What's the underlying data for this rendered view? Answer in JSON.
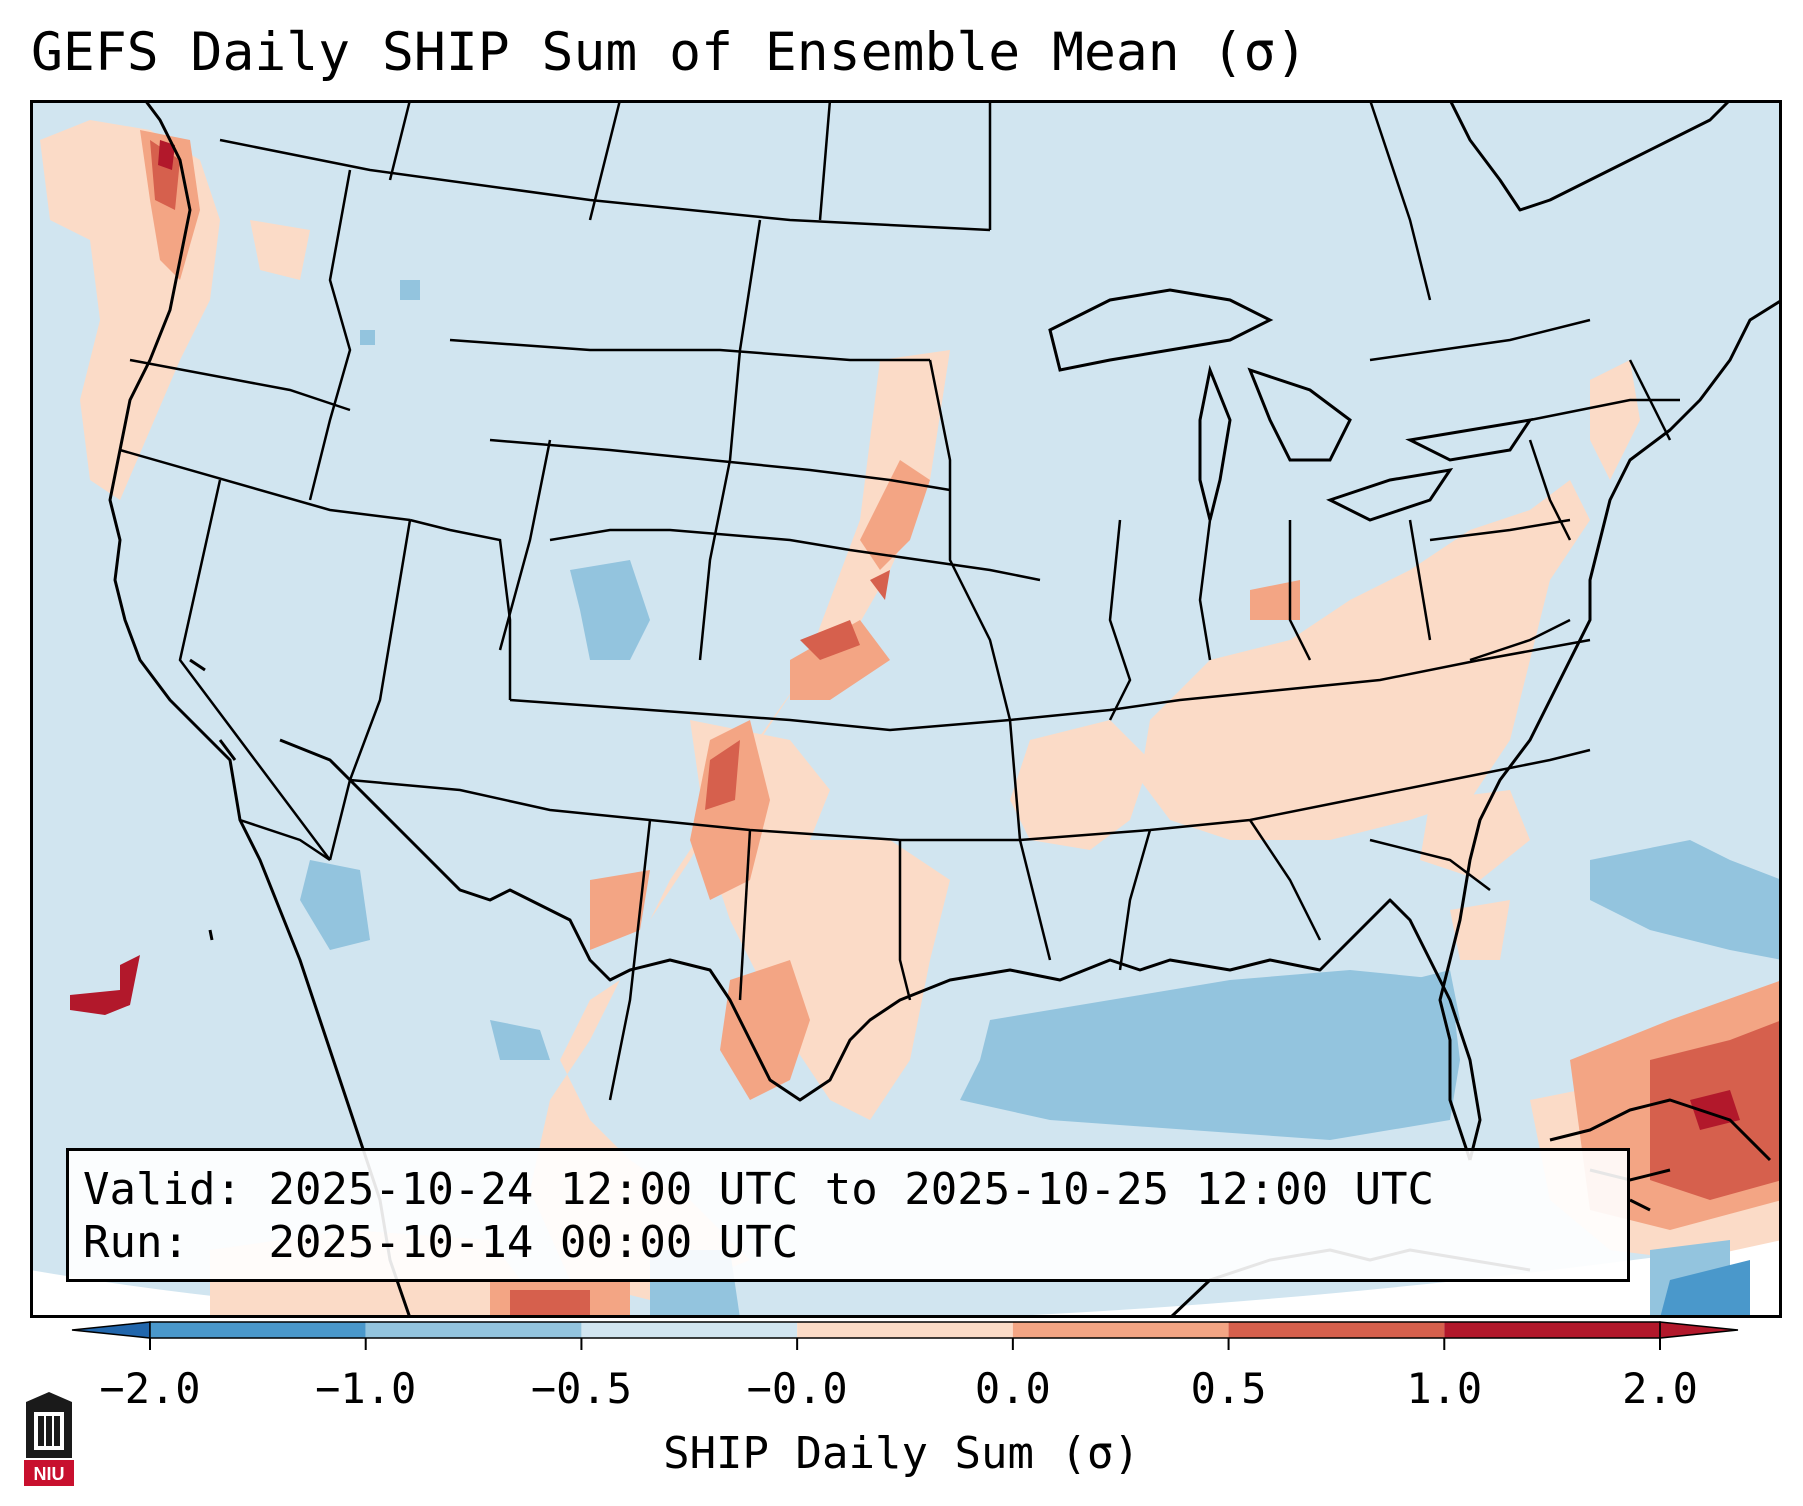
{
  "title": "GEFS Daily SHIP Sum of Ensemble Mean (σ)",
  "info": {
    "valid_label": "Valid:",
    "valid_value": "2025-10-24 12:00 UTC to 2025-10-25 12:00 UTC",
    "run_label": "Run:",
    "run_value": "2025-10-14 00:00 UTC"
  },
  "colorbar": {
    "label": "SHIP Daily Sum (σ)",
    "ticks": [
      "−2.0",
      "−1.0",
      "−0.5",
      "−0.0",
      "0.0",
      "0.5",
      "1.0",
      "2.0"
    ],
    "colors": [
      "#2f7ec0",
      "#4a98cb",
      "#93c4de",
      "#d1e5f0",
      "#fbdbc7",
      "#f3a584",
      "#d6604d",
      "#b2182b"
    ],
    "under_color": "#2166ac",
    "over_color": "#b2182b"
  },
  "map": {
    "background_color": "#d1e5f0",
    "region": "Contiguous United States"
  },
  "logo": {
    "text": "NIU"
  }
}
